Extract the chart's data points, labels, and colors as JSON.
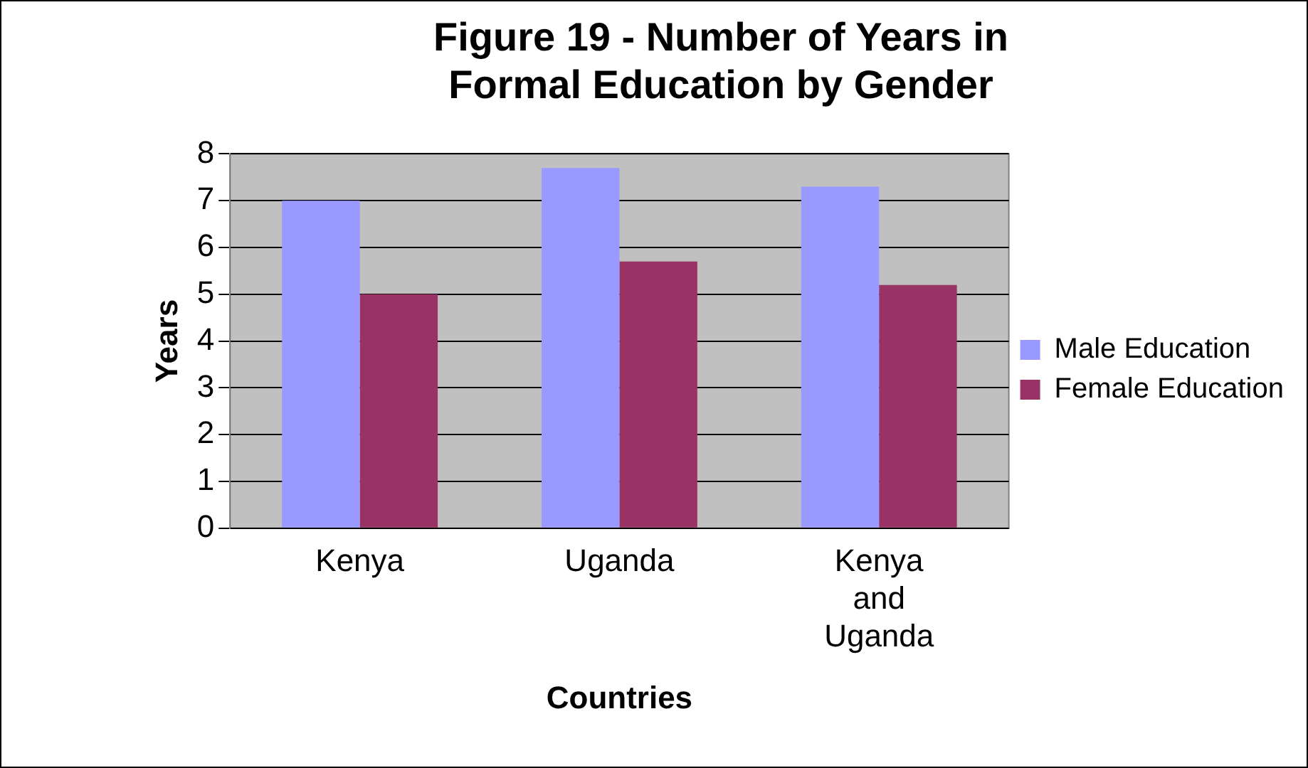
{
  "chart_data": {
    "type": "bar",
    "title": "Figure 19 - Number of Years in Formal Education by Gender",
    "xlabel": "Countries",
    "ylabel": "Years",
    "categories": [
      "Kenya",
      "Uganda",
      "Kenya and Uganda"
    ],
    "series": [
      {
        "name": "Male Education",
        "color": "#9999ff",
        "values": [
          7.0,
          7.7,
          7.3
        ]
      },
      {
        "name": "Female Education",
        "color": "#993366",
        "values": [
          5.0,
          5.7,
          5.2
        ]
      }
    ],
    "ylim": [
      0,
      8
    ],
    "yticks": [
      0,
      1,
      2,
      3,
      4,
      5,
      6,
      7,
      8
    ],
    "grid": "y",
    "legend": "right"
  }
}
